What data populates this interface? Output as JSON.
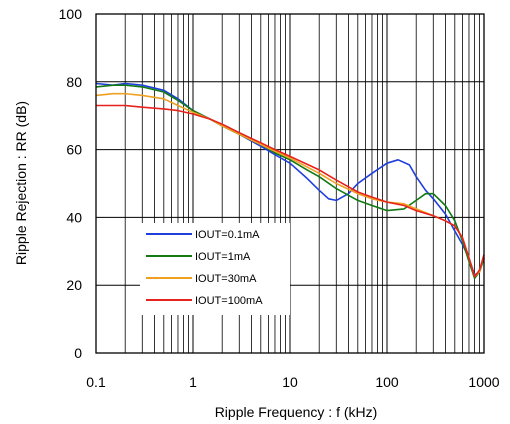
{
  "chart_data": {
    "type": "line",
    "title": "",
    "xlabel": "Ripple Frequency : f (kHz)",
    "ylabel": "Ripple Rejection : RR (dB)",
    "xscale": "log",
    "xlim": [
      0.1,
      1000
    ],
    "ylim": [
      0,
      100
    ],
    "x_ticks": [
      "0.1",
      "1",
      "10",
      "100",
      "1000"
    ],
    "y_ticks": [
      "0",
      "20",
      "40",
      "60",
      "80",
      "100"
    ],
    "grid": true,
    "legend_position": "lower-left",
    "series": [
      {
        "name": "IOUT=0.1mA",
        "color": "#1f3fdc",
        "x": [
          0.1,
          0.15,
          0.2,
          0.3,
          0.5,
          0.7,
          1,
          1.5,
          2,
          3,
          5,
          7,
          10,
          15,
          20,
          25,
          30,
          40,
          50,
          70,
          100,
          130,
          170,
          200,
          250,
          300,
          400,
          500,
          600,
          700,
          800,
          900,
          1000
        ],
        "y": [
          79.5,
          79,
          79.5,
          79,
          77.5,
          75,
          71.5,
          69,
          67,
          64.5,
          61,
          58.5,
          56,
          51.5,
          48,
          45.5,
          45,
          47,
          50,
          53,
          56,
          57,
          55.5,
          52,
          48,
          45.5,
          41,
          36,
          32,
          28,
          23,
          24,
          28
        ]
      },
      {
        "name": "IOUT=1mA",
        "color": "#127a12",
        "x": [
          0.1,
          0.15,
          0.2,
          0.3,
          0.5,
          0.7,
          1,
          1.5,
          2,
          3,
          5,
          7,
          10,
          15,
          20,
          30,
          50,
          70,
          100,
          150,
          200,
          250,
          300,
          400,
          500,
          600,
          700,
          800,
          900,
          1000
        ],
        "y": [
          78.5,
          79,
          79,
          78.5,
          77,
          74.5,
          71.5,
          69,
          67,
          64.5,
          61.5,
          59,
          57,
          54,
          52,
          48.5,
          45,
          43.5,
          42,
          42.5,
          45,
          47,
          47,
          43.5,
          39,
          33,
          27,
          22,
          24,
          28
        ]
      },
      {
        "name": "IOUT=30mA",
        "color": "#f0a020",
        "x": [
          0.1,
          0.15,
          0.2,
          0.3,
          0.5,
          0.7,
          1,
          1.5,
          2,
          3,
          5,
          7,
          10,
          20,
          30,
          50,
          70,
          100,
          150,
          200,
          300,
          400,
          500,
          600,
          700,
          800,
          900,
          1000
        ],
        "y": [
          76,
          76.5,
          76.5,
          76,
          75,
          73,
          71,
          69,
          67,
          64.5,
          61.5,
          59.5,
          57.5,
          53,
          50,
          47,
          45.5,
          44.5,
          44,
          42.5,
          40.5,
          39,
          37.5,
          34,
          28,
          22.5,
          24,
          29
        ]
      },
      {
        "name": "IOUT=100mA",
        "color": "#e8221c",
        "x": [
          0.1,
          0.15,
          0.2,
          0.3,
          0.5,
          0.7,
          1,
          1.5,
          2,
          3,
          5,
          7,
          10,
          20,
          30,
          50,
          70,
          100,
          150,
          200,
          300,
          400,
          500,
          600,
          700,
          800,
          900,
          1000
        ],
        "y": [
          73,
          73,
          73,
          72.5,
          72,
          71.5,
          70.5,
          69,
          67.5,
          65,
          62,
          60,
          58,
          54,
          51,
          47.5,
          46,
          44.5,
          43.5,
          42,
          40.5,
          39,
          37.5,
          34,
          28,
          22.5,
          24.5,
          29
        ]
      }
    ]
  }
}
